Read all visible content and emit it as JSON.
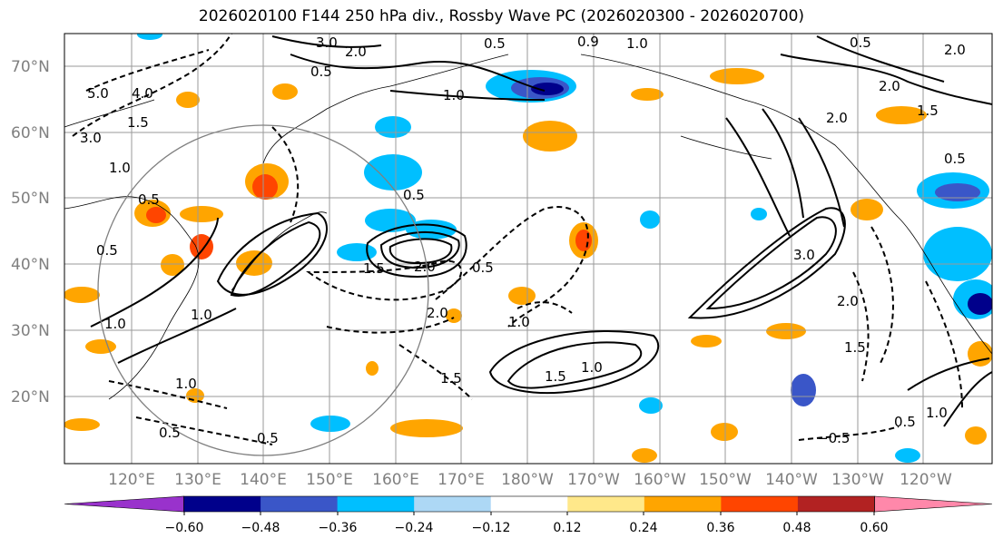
{
  "title": "2026020100 F144 250 hPa div., Rossby Wave PC (2026020300 - 2026020700)",
  "lat_labels": [
    "70°N",
    "60°N",
    "50°N",
    "40°N",
    "30°N",
    "20°N"
  ],
  "lon_labels": [
    "120°E",
    "130°E",
    "140°E",
    "150°E",
    "160°E",
    "170°E",
    "180°W",
    "170°W",
    "160°W",
    "150°W",
    "140°W",
    "130°W",
    "120°W"
  ],
  "colorbar": {
    "tick_labels": [
      "−0.60",
      "−0.48",
      "−0.36",
      "−0.24",
      "−0.12",
      "0.12",
      "0.24",
      "0.36",
      "0.48",
      "0.60"
    ],
    "colors": [
      "#9932cc",
      "#00008b",
      "#3a56c8",
      "#00bfff",
      "#add8f5",
      "#ffffff",
      "#ffe88a",
      "#ffa500",
      "#ff4500",
      "#b22222",
      "#ff88aa"
    ]
  },
  "contour_labels": [
    "3.0",
    "2.0",
    "0.5",
    "1.0",
    "5.0",
    "4.0",
    "3.0",
    "1.0",
    "1.5",
    "0.5",
    "0.5",
    "2.0",
    "0.5",
    "1.0",
    "2.0",
    "1.5",
    "0.5",
    "1.0",
    "1.5",
    "1.0",
    "1.5",
    "0.5",
    "0.5",
    "3.0",
    "2.0",
    "1.0",
    "2.0",
    "1.5",
    "0.5",
    "0.5",
    "1.0",
    "−0.5",
    "0.5",
    "0.9",
    "1.0",
    "0.5",
    "2.0",
    "2.0",
    "1.5",
    "1.0"
  ]
}
